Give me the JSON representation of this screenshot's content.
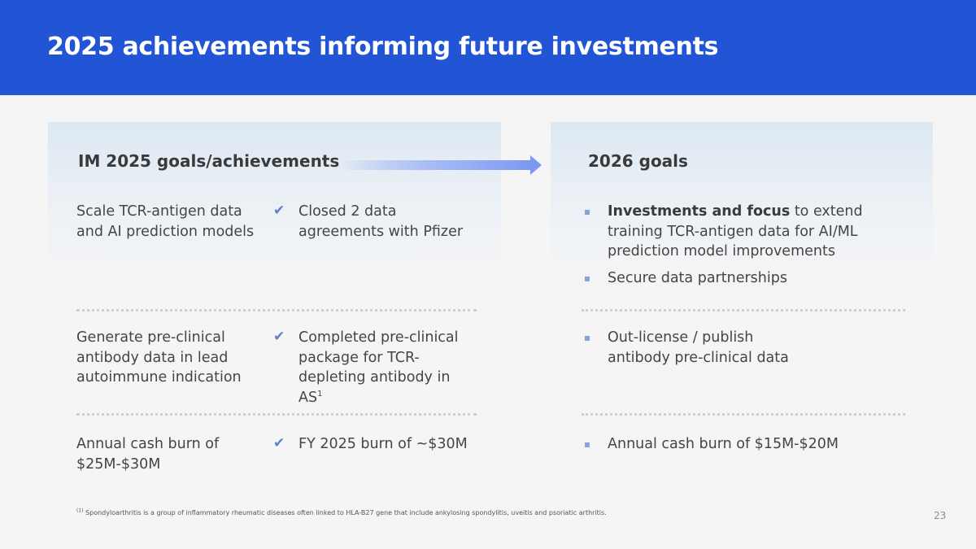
{
  "title": "2025 achievements informing future investments",
  "columns": {
    "left_heading": "IM 2025 goals/achievements",
    "right_heading": "2026 goals"
  },
  "rows": [
    {
      "goal": "Scale TCR-antigen data and AI prediction models",
      "achievement": "Closed 2 data agreements with Pfizer",
      "plans": [
        {
          "bold": "Investments and focus",
          "text": " to extend training TCR-antigen data for AI/ML prediction model improvements"
        },
        {
          "bold": "",
          "text": "Secure data partnerships"
        }
      ]
    },
    {
      "goal": "Generate pre-clinical antibody data in lead autoimmune indication",
      "achievement": "Completed pre-clinical package for TCR-depleting antibody in AS",
      "achievement_sup": "1",
      "plans": [
        {
          "bold": "",
          "text": "Out-license / publish antibody pre-clinical data"
        }
      ]
    },
    {
      "goal": "Annual cash burn of $25M-$30M",
      "achievement": "FY 2025 burn of ~$30M",
      "plans": [
        {
          "bold": "",
          "text": "Annual cash burn of $15M-$20M"
        }
      ]
    }
  ],
  "footnote": {
    "marker": "(1)",
    "text": " Spondyloarthritis is a group of inflammatory rheumatic diseases often linked to HLA-B27 gene that include ankylosing spondylitis, uveitis and psoriatic arthritis."
  },
  "page_number": "23",
  "icons": {
    "check": "check-icon",
    "bullet": "square-bullet-icon",
    "arrow": "arrow-right-icon"
  },
  "colors": {
    "header": "#2255d6",
    "check": "#5c7fce",
    "bullet": "#8aa3d6"
  }
}
